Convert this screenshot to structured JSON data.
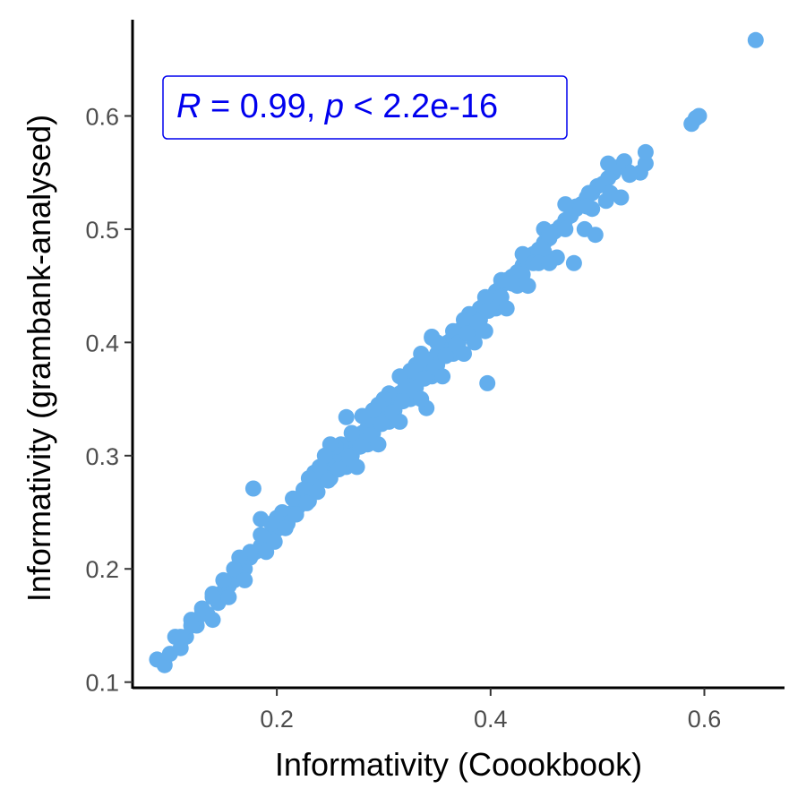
{
  "chart_data": {
    "type": "scatter",
    "xlabel": "Informativity (Coookbook)",
    "ylabel": "Informativity (grambank-analysed)",
    "xlim": [
      0.065,
      0.675
    ],
    "ylim": [
      0.095,
      0.685
    ],
    "x_ticks": [
      0.2,
      0.4,
      0.6
    ],
    "x_tick_labels": [
      "0.2",
      "0.4",
      "0.6"
    ],
    "y_ticks": [
      0.1,
      0.2,
      0.3,
      0.4,
      0.5,
      0.6
    ],
    "y_tick_labels": [
      "0.1",
      "0.2",
      "0.3",
      "0.4",
      "0.5",
      "0.6"
    ],
    "grid": false,
    "point_color": "#63aeed",
    "annotation": {
      "r_symbol": "R",
      "r_text": " = 0.99, ",
      "p_symbol": "p",
      "p_text": " < 2.2e-16",
      "color": "#0000ee"
    },
    "series": [
      {
        "points": [
          [
            0.088,
            0.12
          ],
          [
            0.095,
            0.115
          ],
          [
            0.1,
            0.125
          ],
          [
            0.105,
            0.14
          ],
          [
            0.11,
            0.13
          ],
          [
            0.115,
            0.14
          ],
          [
            0.12,
            0.155
          ],
          [
            0.125,
            0.15
          ],
          [
            0.13,
            0.16
          ],
          [
            0.135,
            0.16
          ],
          [
            0.14,
            0.178
          ],
          [
            0.145,
            0.17
          ],
          [
            0.15,
            0.18
          ],
          [
            0.155,
            0.185
          ],
          [
            0.16,
            0.19
          ],
          [
            0.165,
            0.198
          ],
          [
            0.17,
            0.2
          ],
          [
            0.175,
            0.21
          ],
          [
            0.18,
            0.215
          ],
          [
            0.185,
            0.22
          ],
          [
            0.19,
            0.225
          ],
          [
            0.195,
            0.23
          ],
          [
            0.2,
            0.235
          ],
          [
            0.205,
            0.24
          ],
          [
            0.21,
            0.245
          ],
          [
            0.215,
            0.25
          ],
          [
            0.22,
            0.255
          ],
          [
            0.225,
            0.262
          ],
          [
            0.23,
            0.268
          ],
          [
            0.235,
            0.272
          ],
          [
            0.24,
            0.278
          ],
          [
            0.245,
            0.284
          ],
          [
            0.25,
            0.29
          ],
          [
            0.255,
            0.295
          ],
          [
            0.26,
            0.3
          ],
          [
            0.265,
            0.305
          ],
          [
            0.27,
            0.31
          ],
          [
            0.275,
            0.315
          ],
          [
            0.28,
            0.32
          ],
          [
            0.285,
            0.325
          ],
          [
            0.29,
            0.33
          ],
          [
            0.295,
            0.335
          ],
          [
            0.3,
            0.34
          ],
          [
            0.305,
            0.345
          ],
          [
            0.31,
            0.35
          ],
          [
            0.315,
            0.355
          ],
          [
            0.32,
            0.36
          ],
          [
            0.325,
            0.365
          ],
          [
            0.33,
            0.37
          ],
          [
            0.335,
            0.375
          ],
          [
            0.34,
            0.38
          ],
          [
            0.345,
            0.385
          ],
          [
            0.35,
            0.39
          ],
          [
            0.355,
            0.395
          ],
          [
            0.36,
            0.4
          ],
          [
            0.365,
            0.405
          ],
          [
            0.37,
            0.41
          ],
          [
            0.375,
            0.415
          ],
          [
            0.38,
            0.42
          ],
          [
            0.385,
            0.425
          ],
          [
            0.39,
            0.43
          ],
          [
            0.395,
            0.435
          ],
          [
            0.4,
            0.44
          ],
          [
            0.405,
            0.445
          ],
          [
            0.41,
            0.45
          ],
          [
            0.415,
            0.455
          ],
          [
            0.42,
            0.458
          ],
          [
            0.425,
            0.462
          ],
          [
            0.43,
            0.468
          ],
          [
            0.435,
            0.472
          ],
          [
            0.44,
            0.478
          ],
          [
            0.445,
            0.482
          ],
          [
            0.45,
            0.488
          ],
          [
            0.455,
            0.492
          ],
          [
            0.46,
            0.498
          ],
          [
            0.465,
            0.502
          ],
          [
            0.47,
            0.508
          ],
          [
            0.475,
            0.512
          ],
          [
            0.48,
            0.518
          ],
          [
            0.485,
            0.522
          ],
          [
            0.49,
            0.528
          ],
          [
            0.495,
            0.532
          ],
          [
            0.5,
            0.538
          ],
          [
            0.505,
            0.54
          ],
          [
            0.51,
            0.545
          ],
          [
            0.515,
            0.55
          ],
          [
            0.52,
            0.555
          ],
          [
            0.525,
            0.56
          ],
          [
            0.53,
            0.55
          ],
          [
            0.54,
            0.55
          ],
          [
            0.545,
            0.558
          ],
          [
            0.545,
            0.568
          ],
          [
            0.51,
            0.558
          ],
          [
            0.512,
            0.532
          ],
          [
            0.492,
            0.532
          ],
          [
            0.48,
            0.52
          ],
          [
            0.47,
            0.522
          ],
          [
            0.495,
            0.518
          ],
          [
            0.45,
            0.5
          ],
          [
            0.455,
            0.495
          ],
          [
            0.42,
            0.452
          ],
          [
            0.43,
            0.478
          ],
          [
            0.44,
            0.47
          ],
          [
            0.41,
            0.455
          ],
          [
            0.4,
            0.43
          ],
          [
            0.395,
            0.44
          ],
          [
            0.38,
            0.425
          ],
          [
            0.375,
            0.42
          ],
          [
            0.365,
            0.41
          ],
          [
            0.35,
            0.4
          ],
          [
            0.345,
            0.405
          ],
          [
            0.335,
            0.39
          ],
          [
            0.33,
            0.38
          ],
          [
            0.325,
            0.375
          ],
          [
            0.315,
            0.37
          ],
          [
            0.305,
            0.355
          ],
          [
            0.3,
            0.35
          ],
          [
            0.295,
            0.345
          ],
          [
            0.29,
            0.34
          ],
          [
            0.28,
            0.335
          ],
          [
            0.27,
            0.32
          ],
          [
            0.26,
            0.31
          ],
          [
            0.255,
            0.308
          ],
          [
            0.25,
            0.31
          ],
          [
            0.245,
            0.3
          ],
          [
            0.24,
            0.29
          ],
          [
            0.235,
            0.285
          ],
          [
            0.23,
            0.28
          ],
          [
            0.225,
            0.27
          ],
          [
            0.22,
            0.262
          ],
          [
            0.215,
            0.262
          ],
          [
            0.205,
            0.25
          ],
          [
            0.2,
            0.245
          ],
          [
            0.195,
            0.24
          ],
          [
            0.185,
            0.23
          ],
          [
            0.175,
            0.215
          ],
          [
            0.165,
            0.21
          ],
          [
            0.16,
            0.2
          ],
          [
            0.15,
            0.19
          ],
          [
            0.14,
            0.175
          ],
          [
            0.13,
            0.165
          ],
          [
            0.12,
            0.15
          ],
          [
            0.11,
            0.14
          ],
          [
            0.21,
            0.24
          ],
          [
            0.23,
            0.26
          ],
          [
            0.25,
            0.28
          ],
          [
            0.27,
            0.3
          ],
          [
            0.29,
            0.32
          ],
          [
            0.31,
            0.34
          ],
          [
            0.33,
            0.36
          ],
          [
            0.35,
            0.38
          ],
          [
            0.37,
            0.4
          ],
          [
            0.39,
            0.42
          ],
          [
            0.41,
            0.44
          ],
          [
            0.43,
            0.46
          ],
          [
            0.45,
            0.48
          ],
          [
            0.47,
            0.5
          ],
          [
            0.49,
            0.52
          ],
          [
            0.265,
            0.29
          ],
          [
            0.285,
            0.31
          ],
          [
            0.305,
            0.33
          ],
          [
            0.325,
            0.35
          ],
          [
            0.345,
            0.37
          ],
          [
            0.365,
            0.39
          ],
          [
            0.385,
            0.41
          ],
          [
            0.405,
            0.43
          ],
          [
            0.425,
            0.45
          ],
          [
            0.445,
            0.47
          ],
          [
            0.178,
            0.271
          ],
          [
            0.185,
            0.244
          ],
          [
            0.265,
            0.334
          ],
          [
            0.345,
            0.404
          ],
          [
            0.34,
            0.342
          ],
          [
            0.397,
            0.364
          ],
          [
            0.385,
            0.4
          ],
          [
            0.41,
            0.44
          ],
          [
            0.462,
            0.475
          ],
          [
            0.478,
            0.47
          ],
          [
            0.488,
            0.5
          ],
          [
            0.498,
            0.495
          ],
          [
            0.508,
            0.525
          ],
          [
            0.522,
            0.528
          ],
          [
            0.53,
            0.548
          ],
          [
            0.588,
            0.593
          ],
          [
            0.592,
            0.598
          ],
          [
            0.595,
            0.6
          ],
          [
            0.648,
            0.667
          ],
          [
            0.14,
            0.155
          ],
          [
            0.155,
            0.175
          ],
          [
            0.17,
            0.19
          ],
          [
            0.19,
            0.215
          ],
          [
            0.198,
            0.224
          ],
          [
            0.208,
            0.236
          ],
          [
            0.218,
            0.248
          ],
          [
            0.228,
            0.258
          ],
          [
            0.238,
            0.268
          ],
          [
            0.248,
            0.278
          ],
          [
            0.258,
            0.288
          ],
          [
            0.268,
            0.298
          ],
          [
            0.278,
            0.308
          ],
          [
            0.288,
            0.318
          ],
          [
            0.298,
            0.328
          ],
          [
            0.308,
            0.338
          ],
          [
            0.318,
            0.348
          ],
          [
            0.328,
            0.358
          ],
          [
            0.338,
            0.368
          ],
          [
            0.348,
            0.378
          ],
          [
            0.358,
            0.388
          ],
          [
            0.368,
            0.398
          ],
          [
            0.378,
            0.408
          ],
          [
            0.388,
            0.418
          ],
          [
            0.398,
            0.428
          ],
          [
            0.275,
            0.29
          ],
          [
            0.295,
            0.31
          ],
          [
            0.315,
            0.33
          ],
          [
            0.335,
            0.35
          ],
          [
            0.355,
            0.37
          ],
          [
            0.375,
            0.39
          ],
          [
            0.395,
            0.41
          ],
          [
            0.415,
            0.43
          ],
          [
            0.435,
            0.45
          ],
          [
            0.455,
            0.47
          ]
        ]
      }
    ]
  }
}
